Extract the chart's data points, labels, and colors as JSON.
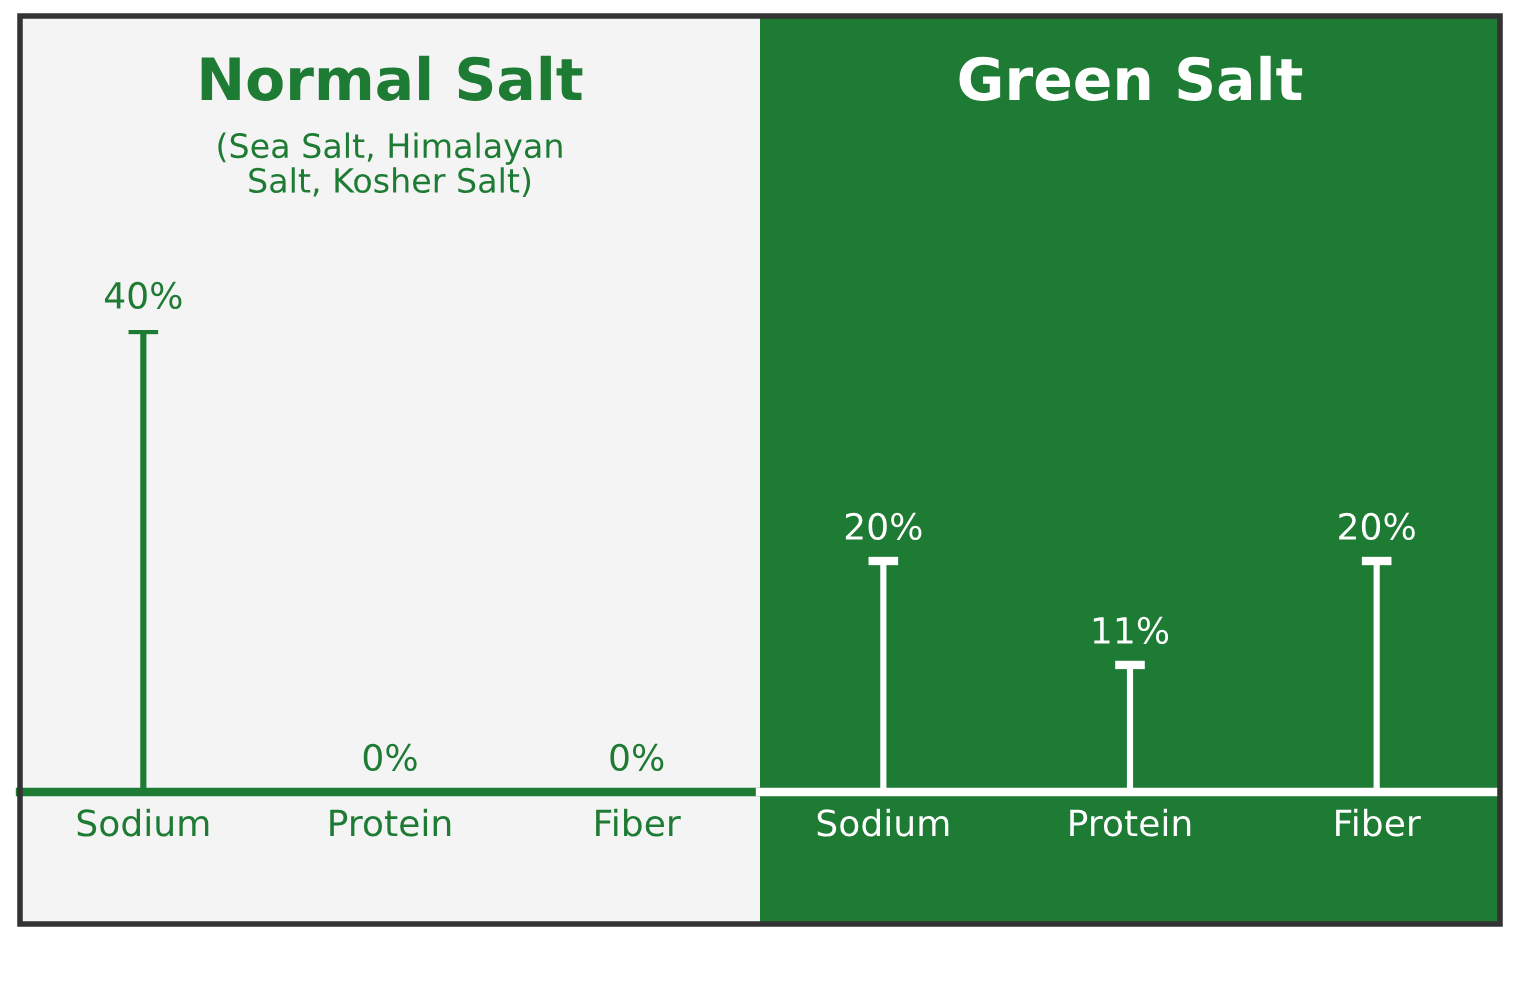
{
  "chart_data": [
    {
      "type": "bar",
      "title": "Normal Salt",
      "subtitle": "(Sea Salt, Himalayan\nSalt, Kosher Salt)",
      "categories": [
        "Sodium",
        "Protein",
        "Fiber"
      ],
      "values": [
        40,
        0,
        0
      ],
      "value_labels": [
        "40%",
        "0%",
        "0%"
      ],
      "color": "#1e7b34"
    },
    {
      "type": "bar",
      "title": "Green Salt",
      "categories": [
        "Sodium",
        "Protein",
        "Fiber"
      ],
      "values": [
        20,
        11,
        20
      ],
      "value_labels": [
        "20%",
        "11%",
        "20%"
      ],
      "color": "#ffffff"
    }
  ]
}
